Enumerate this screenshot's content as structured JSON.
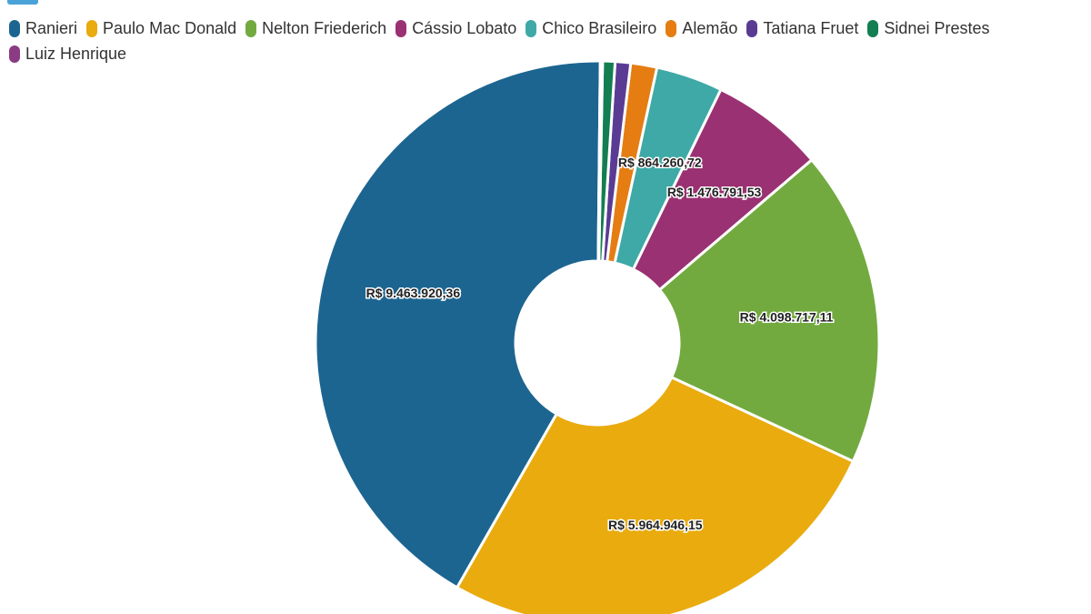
{
  "chart_data": {
    "type": "pie",
    "title": "",
    "legend_position": "top-left",
    "series": [
      {
        "name": "Ranieri",
        "value": 9463920.36,
        "label": "R$ 9.463.920,36",
        "color": "#1c6591"
      },
      {
        "name": "Paulo Mac Donald",
        "value": 5964946.15,
        "label": "R$ 5.964.946,15",
        "color": "#e9ab0e"
      },
      {
        "name": "Nelton Friederich",
        "value": 4098717.11,
        "label": "R$ 4.098.717,11",
        "color": "#72aa3f"
      },
      {
        "name": "Cássio Lobato",
        "value": 1476791.53,
        "label": "R$ 1.476.791,53",
        "color": "#9a3172"
      },
      {
        "name": "Chico Brasileiro",
        "value": 864260.72,
        "label": "R$ 864.260,72",
        "color": "#3ea9a6"
      },
      {
        "name": "Alemão",
        "value": 340000,
        "label": "",
        "color": "#e57d12"
      },
      {
        "name": "Tatiana Fruet",
        "value": 200000,
        "label": "",
        "color": "#5a3b94"
      },
      {
        "name": "Sidnei Prestes",
        "value": 160000,
        "label": "",
        "color": "#137e51"
      },
      {
        "name": "Luiz Henrique",
        "value": 30000,
        "label": "",
        "color": "#8b3a84"
      }
    ]
  }
}
